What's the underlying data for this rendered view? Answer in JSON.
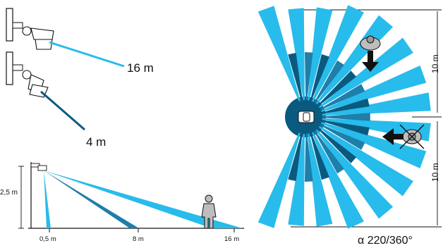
{
  "top_left": {
    "range_far_label": "16 m",
    "range_near_label": "4 m"
  },
  "side_view": {
    "height_label": "2,5 m",
    "tick_labels": [
      "0,5 m",
      "8 m",
      "16 m"
    ]
  },
  "top_view": {
    "left_dimension_label": "10 m",
    "right_dimension_label": "10 m",
    "angle_label": "α 220/360°"
  },
  "colors": {
    "light_blue": "#27BCEB",
    "dark_blue": "#0A5A80",
    "mid_blue": "#1F7EAA"
  }
}
